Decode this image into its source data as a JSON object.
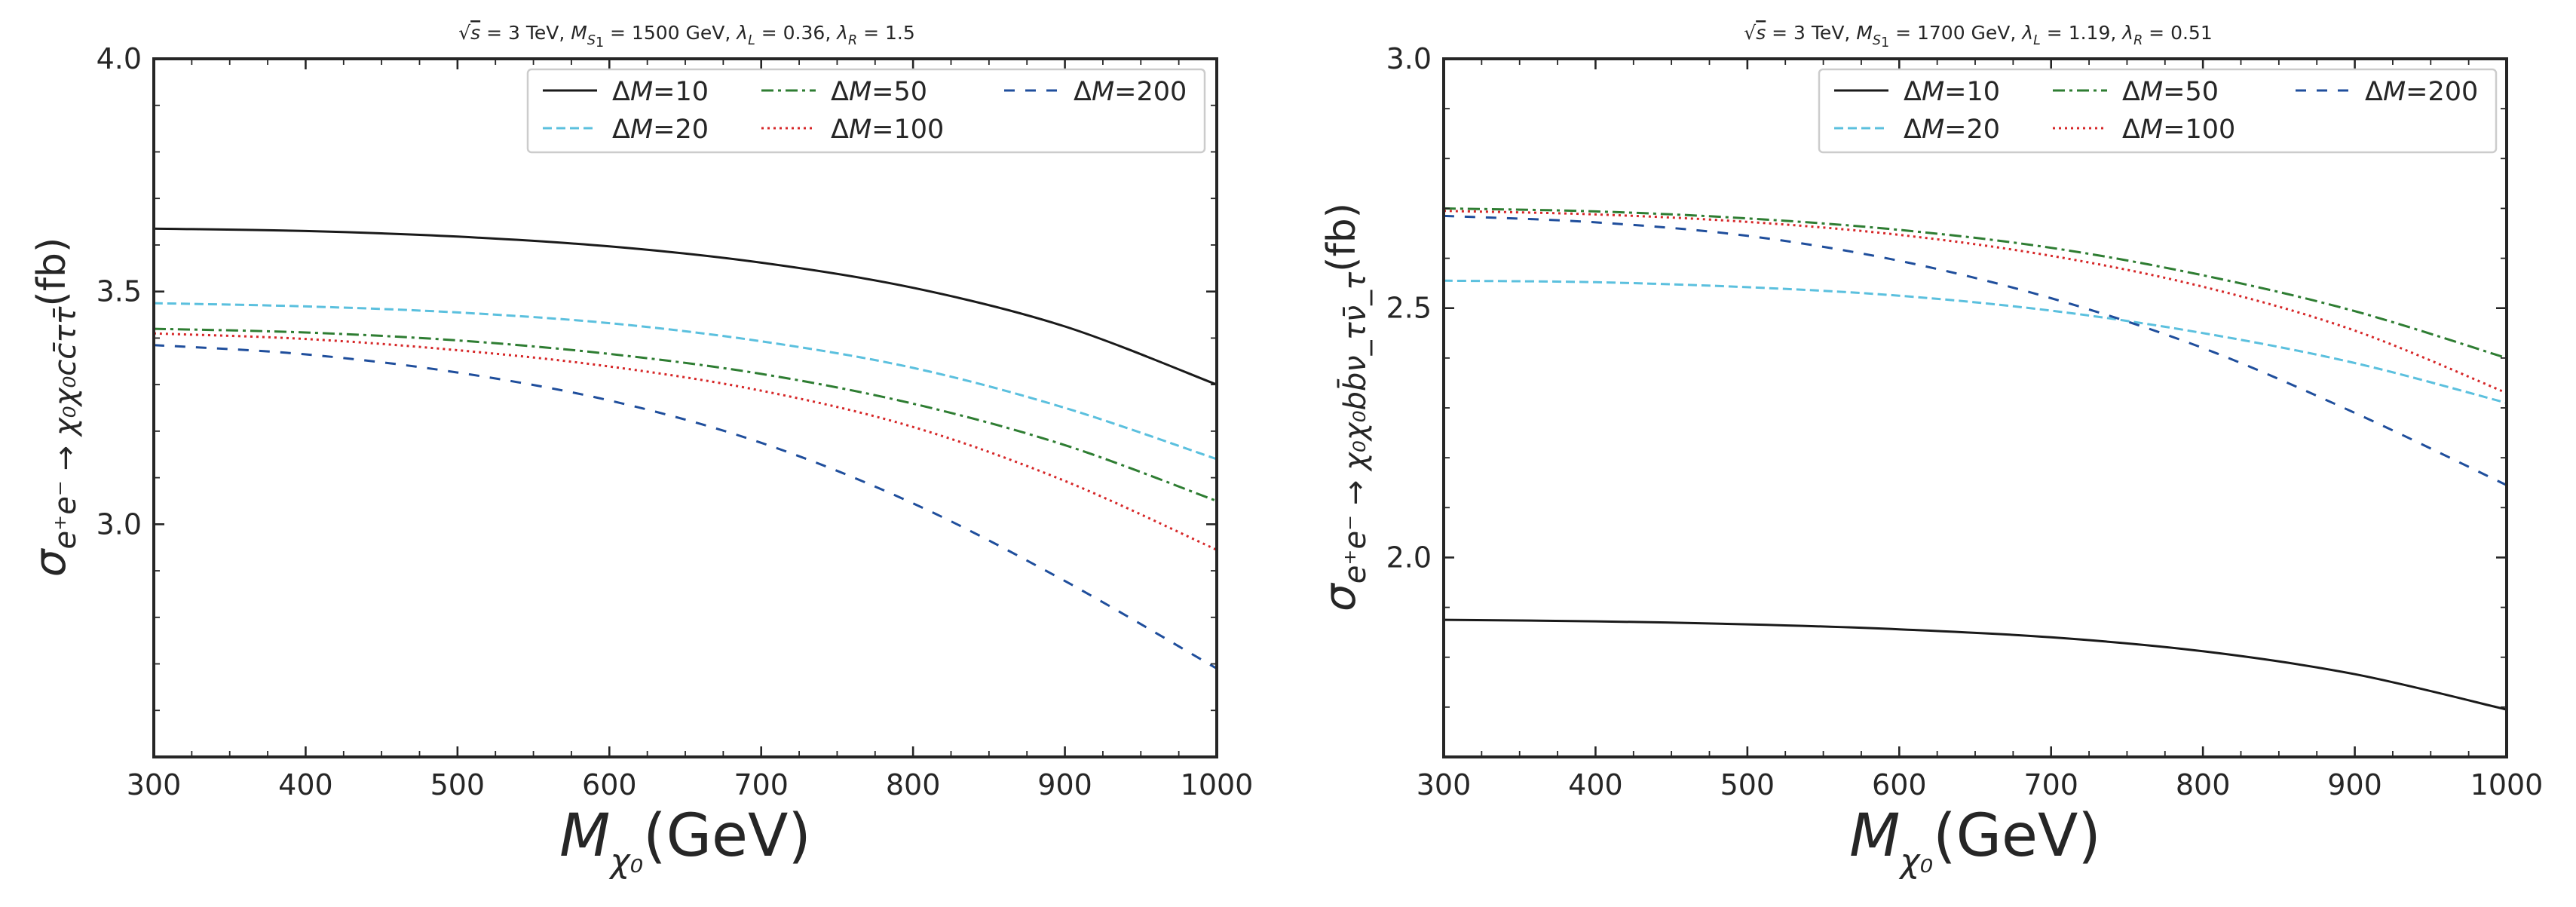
{
  "chart_data": [
    {
      "type": "line",
      "title": "√s = 3 TeV, M_S1 = 1500 GeV, λ_L = 0.36, λ_R = 1.5",
      "title_parts": {
        "sqrt": "√",
        "s": "s",
        "tev": " = 3 TeV,  ",
        "m": "M",
        "msub": "S",
        "msub2": "1",
        "mval": " = 1500 GeV,  ",
        "l": "λ",
        "lsub": "L",
        "lval": " = 0.36,  ",
        "r": "λ",
        "rsub": "R",
        "rval": " = 1.5"
      },
      "xlabel": "M_χ0(GeV)",
      "ylabel": "σ_{e+e− → χ0χ0 c c̄ τ τ̄}(fb)",
      "ylabel_parts": {
        "main": "σ",
        "sub": "e⁺e⁻ → χ₀χ₀cc̄ττ̄",
        "unit": "(fb)"
      },
      "xlabel_parts": {
        "main": "M",
        "sub": "χ₀",
        "unit": "(GeV)"
      },
      "xlim": [
        300,
        1000
      ],
      "ylim": [
        2.5,
        4.0
      ],
      "xticks": [
        "300",
        "400",
        "500",
        "600",
        "700",
        "800",
        "900",
        "1000"
      ],
      "yticks": [
        "3.0",
        "3.5",
        "4.0"
      ],
      "yticks_values": [
        3.0,
        3.5,
        4.0
      ],
      "legend_location": "top-right",
      "x": [
        300,
        400,
        500,
        600,
        700,
        800,
        900,
        1000
      ],
      "series": [
        {
          "name": "ΔM=10",
          "label_var": "M",
          "label_val": "=10",
          "style": "solid",
          "color": "#1a1a1a",
          "values": [
            3.635,
            3.63,
            3.618,
            3.597,
            3.562,
            3.508,
            3.425,
            3.3
          ]
        },
        {
          "name": "ΔM=20",
          "label_var": "M",
          "label_val": "=20",
          "style": "dashed",
          "color": "#5bc0de",
          "values": [
            3.475,
            3.468,
            3.455,
            3.432,
            3.393,
            3.336,
            3.25,
            3.14
          ]
        },
        {
          "name": "ΔM=50",
          "label_var": "M",
          "label_val": "=50",
          "style": "dashdot",
          "color": "#2e7d32",
          "values": [
            3.42,
            3.412,
            3.395,
            3.366,
            3.323,
            3.259,
            3.17,
            3.05
          ]
        },
        {
          "name": "ΔM=100",
          "label_var": "M",
          "label_val": "=100",
          "style": "dotted",
          "color": "#d62728",
          "values": [
            3.41,
            3.398,
            3.374,
            3.339,
            3.287,
            3.209,
            3.093,
            2.945
          ]
        },
        {
          "name": "ΔM=200",
          "label_var": "M",
          "label_val": "=200",
          "style": "loosedash",
          "color": "#1f4e9c",
          "values": [
            3.385,
            3.365,
            3.326,
            3.266,
            3.175,
            3.045,
            2.878,
            2.69
          ]
        }
      ]
    },
    {
      "type": "line",
      "title": "√s = 3 TeV, M_S1 = 1700 GeV, λ_L = 1.19, λ_R = 0.51",
      "title_parts": {
        "sqrt": "√",
        "s": "s",
        "tev": " = 3 TeV,  ",
        "m": "M",
        "msub": "S",
        "msub2": "1",
        "mval": " = 1700 GeV,  ",
        "l": "λ",
        "lsub": "L",
        "lval": " = 1.19,  ",
        "r": "λ",
        "rsub": "R",
        "rval": " = 0.51"
      },
      "xlabel": "M_χ0(GeV)",
      "ylabel": "σ_{e+e− → χ0χ0 b b̄ ν_τ ν̄_τ}(fb)",
      "ylabel_parts": {
        "main": "σ",
        "sub": "e⁺e⁻ → χ₀χ₀bb̄ν_τν̄_τ",
        "unit": "(fb)"
      },
      "xlabel_parts": {
        "main": "M",
        "sub": "χ₀",
        "unit": "(GeV)"
      },
      "xlim": [
        300,
        1000
      ],
      "ylim": [
        1.6,
        3.0
      ],
      "xticks": [
        "300",
        "400",
        "500",
        "600",
        "700",
        "800",
        "900",
        "1000"
      ],
      "yticks": [
        "2.0",
        "2.5",
        "3.0"
      ],
      "yticks_values": [
        2.0,
        2.5,
        3.0
      ],
      "legend_location": "top-right",
      "x": [
        300,
        400,
        500,
        600,
        700,
        800,
        900,
        1000
      ],
      "series": [
        {
          "name": "ΔM=10",
          "label_var": "M",
          "label_val": "=10",
          "style": "solid",
          "color": "#1a1a1a",
          "values": [
            1.875,
            1.872,
            1.866,
            1.856,
            1.84,
            1.812,
            1.766,
            1.695
          ]
        },
        {
          "name": "ΔM=20",
          "label_var": "M",
          "label_val": "=20",
          "style": "dashed",
          "color": "#5bc0de",
          "values": [
            2.555,
            2.552,
            2.542,
            2.525,
            2.495,
            2.45,
            2.39,
            2.31
          ]
        },
        {
          "name": "ΔM=50",
          "label_var": "M",
          "label_val": "=50",
          "style": "dashdot",
          "color": "#2e7d32",
          "values": [
            2.7,
            2.694,
            2.68,
            2.657,
            2.621,
            2.566,
            2.494,
            2.4
          ]
        },
        {
          "name": "ΔM=100",
          "label_var": "M",
          "label_val": "=100",
          "style": "dotted",
          "color": "#d62728",
          "values": [
            2.695,
            2.688,
            2.673,
            2.647,
            2.605,
            2.543,
            2.455,
            2.33
          ]
        },
        {
          "name": "ΔM=200",
          "label_var": "M",
          "label_val": "=200",
          "style": "loosedash",
          "color": "#1f4e9c",
          "values": [
            2.685,
            2.672,
            2.645,
            2.595,
            2.52,
            2.42,
            2.29,
            2.145
          ]
        }
      ]
    }
  ]
}
